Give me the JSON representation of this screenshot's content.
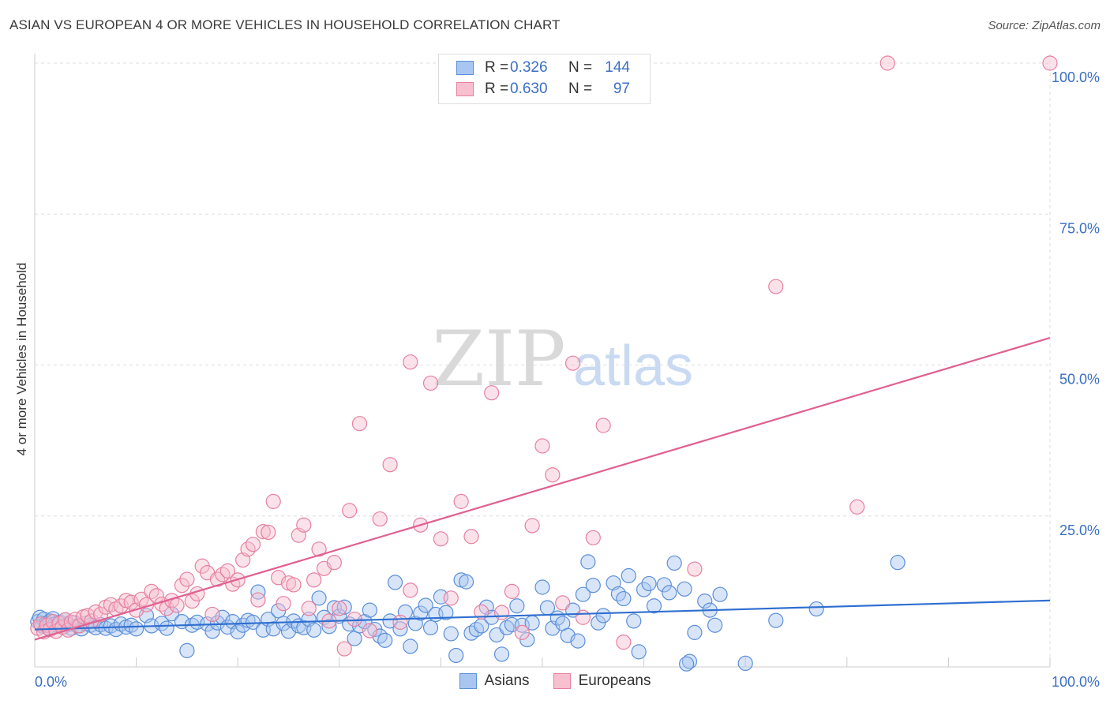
{
  "title": "ASIAN VS EUROPEAN 4 OR MORE VEHICLES IN HOUSEHOLD CORRELATION CHART",
  "source": "Source: ZipAtlas.com",
  "watermark": {
    "zip": "ZIP",
    "atlas": "atlas"
  },
  "legend": {
    "rows": [
      {
        "r_label": "R =",
        "r_value": "0.326",
        "n_label": "N =",
        "n_value": "144",
        "color": "#a9c6f0",
        "border": "#5b8fd9"
      },
      {
        "r_label": "R =",
        "r_value": "0.630",
        "n_label": "N =",
        "n_value": "97",
        "color": "#f7bfd0",
        "border": "#e6809f"
      }
    ]
  },
  "bottom_legend": {
    "asians": "Asians",
    "europeans": "Europeans"
  },
  "chart_data": {
    "type": "scatter",
    "title": "ASIAN VS EUROPEAN 4 OR MORE VEHICLES IN HOUSEHOLD CORRELATION CHART",
    "xlabel": "",
    "ylabel": "4 or more Vehicles in Household",
    "xlim": [
      0,
      100
    ],
    "ylim": [
      0,
      100
    ],
    "x_tick_labels": [
      "0.0%",
      "100.0%"
    ],
    "y_tick_labels": [
      "25.0%",
      "50.0%",
      "75.0%",
      "100.0%"
    ],
    "y_ticks": [
      25,
      50,
      75,
      100
    ],
    "grid": true,
    "legend_position": "top-center",
    "series": [
      {
        "name": "Asians",
        "color": "#a9c6f0",
        "edge": "#5b8fd9",
        "trend_color": "#2f6fd0",
        "trend": [
          [
            0,
            6.2
          ],
          [
            100,
            11.0
          ]
        ],
        "points": [
          [
            0.3,
            7.5
          ],
          [
            0.5,
            8.2
          ],
          [
            0.7,
            6.8
          ],
          [
            0.9,
            7.9
          ],
          [
            1.1,
            7.2
          ],
          [
            1.3,
            6.5
          ],
          [
            1.5,
            7.6
          ],
          [
            1.8,
            8.0
          ],
          [
            2.0,
            7.1
          ],
          [
            2.2,
            6.9
          ],
          [
            2.5,
            7.4
          ],
          [
            2.8,
            6.6
          ],
          [
            3.0,
            7.8
          ],
          [
            3.3,
            7.0
          ],
          [
            3.6,
            6.4
          ],
          [
            3.9,
            7.3
          ],
          [
            4.2,
            6.8
          ],
          [
            4.6,
            6.3
          ],
          [
            5.0,
            7.2
          ],
          [
            5.5,
            6.9
          ],
          [
            6.0,
            6.5
          ],
          [
            6.5,
            7.0
          ],
          [
            7.0,
            6.4
          ],
          [
            7.5,
            6.8
          ],
          [
            8.0,
            6.2
          ],
          [
            8.5,
            7.1
          ],
          [
            9.0,
            6.6
          ],
          [
            9.5,
            6.9
          ],
          [
            10.0,
            6.3
          ],
          [
            11.0,
            8.5
          ],
          [
            11.5,
            6.8
          ],
          [
            12.5,
            7.2
          ],
          [
            13.0,
            6.4
          ],
          [
            13.5,
            8.8
          ],
          [
            14.5,
            7.5
          ],
          [
            15.0,
            2.7
          ],
          [
            15.5,
            6.9
          ],
          [
            16.0,
            7.4
          ],
          [
            17.0,
            7.1
          ],
          [
            17.5,
            5.9
          ],
          [
            18.0,
            7.3
          ],
          [
            18.5,
            8.2
          ],
          [
            19.0,
            6.6
          ],
          [
            19.5,
            7.5
          ],
          [
            20.0,
            5.8
          ],
          [
            20.5,
            6.9
          ],
          [
            21.0,
            7.7
          ],
          [
            21.5,
            7.4
          ],
          [
            22.0,
            12.4
          ],
          [
            22.5,
            6.1
          ],
          [
            23.0,
            7.9
          ],
          [
            23.5,
            6.3
          ],
          [
            24.0,
            9.3
          ],
          [
            24.5,
            7.2
          ],
          [
            25.0,
            5.9
          ],
          [
            25.5,
            7.6
          ],
          [
            26.0,
            6.8
          ],
          [
            26.5,
            6.5
          ],
          [
            27.0,
            7.9
          ],
          [
            27.5,
            6.1
          ],
          [
            28.0,
            11.4
          ],
          [
            28.5,
            8.2
          ],
          [
            29.0,
            6.7
          ],
          [
            29.5,
            9.8
          ],
          [
            30.0,
            8.4
          ],
          [
            30.5,
            9.9
          ],
          [
            31.0,
            7.1
          ],
          [
            31.5,
            4.7
          ],
          [
            32.0,
            6.8
          ],
          [
            32.5,
            7.5
          ],
          [
            33.0,
            9.4
          ],
          [
            33.5,
            6.2
          ],
          [
            34.0,
            5.1
          ],
          [
            34.5,
            4.4
          ],
          [
            35.0,
            7.6
          ],
          [
            35.5,
            14.0
          ],
          [
            36.0,
            6.3
          ],
          [
            36.5,
            9.1
          ],
          [
            37.0,
            3.4
          ],
          [
            37.5,
            7.2
          ],
          [
            38.0,
            8.9
          ],
          [
            38.5,
            10.2
          ],
          [
            39.0,
            6.5
          ],
          [
            39.5,
            8.7
          ],
          [
            40.0,
            11.6
          ],
          [
            40.5,
            9.0
          ],
          [
            41.0,
            5.5
          ],
          [
            41.5,
            1.9
          ],
          [
            42.0,
            14.4
          ],
          [
            42.5,
            14.1
          ],
          [
            43.0,
            5.6
          ],
          [
            43.5,
            6.2
          ],
          [
            44.0,
            6.8
          ],
          [
            44.5,
            9.9
          ],
          [
            45.0,
            8.2
          ],
          [
            45.5,
            5.3
          ],
          [
            46.0,
            2.1
          ],
          [
            46.5,
            6.5
          ],
          [
            47.0,
            7.0
          ],
          [
            47.5,
            10.1
          ],
          [
            48.0,
            6.9
          ],
          [
            48.5,
            4.5
          ],
          [
            49.0,
            7.3
          ],
          [
            50.0,
            13.2
          ],
          [
            50.5,
            9.8
          ],
          [
            51.0,
            6.4
          ],
          [
            51.5,
            8.1
          ],
          [
            52.0,
            7.2
          ],
          [
            52.5,
            5.2
          ],
          [
            53.0,
            9.4
          ],
          [
            53.5,
            4.3
          ],
          [
            54.0,
            12.0
          ],
          [
            54.5,
            17.4
          ],
          [
            55.0,
            13.5
          ],
          [
            55.5,
            7.3
          ],
          [
            56.0,
            8.5
          ],
          [
            57.0,
            13.9
          ],
          [
            57.5,
            12.1
          ],
          [
            58.0,
            11.3
          ],
          [
            58.5,
            15.1
          ],
          [
            59.0,
            7.6
          ],
          [
            59.5,
            2.5
          ],
          [
            60.0,
            12.8
          ],
          [
            60.5,
            13.8
          ],
          [
            61.0,
            10.1
          ],
          [
            62.0,
            13.6
          ],
          [
            62.5,
            12.3
          ],
          [
            63.0,
            17.2
          ],
          [
            64.0,
            12.9
          ],
          [
            64.5,
            0.9
          ],
          [
            65.0,
            5.7
          ],
          [
            66.0,
            10.9
          ],
          [
            66.5,
            9.4
          ],
          [
            67.0,
            6.9
          ],
          [
            67.5,
            12.0
          ],
          [
            70.0,
            0.6
          ],
          [
            73.0,
            7.7
          ],
          [
            77.0,
            9.6
          ],
          [
            85.0,
            17.3
          ],
          [
            64.2,
            0.5
          ]
        ]
      },
      {
        "name": "Europeans",
        "color": "#f7bfd0",
        "edge": "#e6809f",
        "trend_color": "#e06090",
        "trend": [
          [
            0,
            4.5
          ],
          [
            100,
            54.5
          ]
        ],
        "points": [
          [
            0.3,
            6.4
          ],
          [
            0.6,
            7.1
          ],
          [
            0.9,
            5.8
          ],
          [
            1.2,
            6.9
          ],
          [
            1.5,
            6.2
          ],
          [
            1.8,
            7.5
          ],
          [
            2.1,
            5.9
          ],
          [
            2.4,
            7.2
          ],
          [
            2.7,
            6.6
          ],
          [
            3.0,
            7.8
          ],
          [
            3.3,
            6.1
          ],
          [
            3.6,
            7.4
          ],
          [
            4.0,
            7.9
          ],
          [
            4.4,
            6.8
          ],
          [
            4.8,
            8.3
          ],
          [
            5.2,
            8.5
          ],
          [
            5.6,
            7.6
          ],
          [
            6.0,
            9.1
          ],
          [
            6.5,
            8.7
          ],
          [
            7.0,
            9.9
          ],
          [
            7.5,
            10.3
          ],
          [
            8.0,
            9.6
          ],
          [
            8.5,
            10.1
          ],
          [
            9.0,
            11.0
          ],
          [
            9.5,
            10.7
          ],
          [
            10.0,
            9.4
          ],
          [
            10.5,
            11.2
          ],
          [
            11.0,
            10.3
          ],
          [
            11.5,
            12.5
          ],
          [
            12.0,
            11.8
          ],
          [
            12.5,
            10.4
          ],
          [
            13.0,
            9.7
          ],
          [
            13.5,
            11.0
          ],
          [
            14.0,
            10.2
          ],
          [
            14.5,
            13.5
          ],
          [
            15.0,
            14.5
          ],
          [
            15.5,
            10.9
          ],
          [
            16.0,
            12.1
          ],
          [
            16.5,
            16.7
          ],
          [
            17.0,
            15.6
          ],
          [
            17.5,
            8.7
          ],
          [
            18.0,
            14.5
          ],
          [
            18.5,
            15.3
          ],
          [
            19.0,
            15.9
          ],
          [
            19.5,
            13.7
          ],
          [
            20.0,
            14.4
          ],
          [
            20.5,
            17.7
          ],
          [
            21.0,
            19.5
          ],
          [
            21.5,
            20.3
          ],
          [
            22.0,
            11.1
          ],
          [
            22.5,
            22.4
          ],
          [
            23.0,
            22.3
          ],
          [
            23.5,
            27.4
          ],
          [
            24.0,
            14.8
          ],
          [
            24.5,
            10.5
          ],
          [
            25.0,
            13.9
          ],
          [
            25.5,
            13.6
          ],
          [
            26.0,
            21.8
          ],
          [
            26.5,
            23.5
          ],
          [
            27.0,
            9.7
          ],
          [
            27.5,
            14.4
          ],
          [
            28.0,
            19.5
          ],
          [
            28.5,
            16.3
          ],
          [
            29.0,
            7.6
          ],
          [
            29.5,
            17.3
          ],
          [
            30.0,
            9.7
          ],
          [
            30.5,
            3.0
          ],
          [
            31.0,
            25.9
          ],
          [
            31.5,
            7.9
          ],
          [
            32.0,
            40.3
          ],
          [
            33.0,
            6.0
          ],
          [
            34.0,
            24.5
          ],
          [
            35.0,
            33.5
          ],
          [
            36.0,
            7.4
          ],
          [
            37.0,
            12.7
          ],
          [
            38.0,
            23.5
          ],
          [
            39.0,
            47.0
          ],
          [
            40.0,
            21.2
          ],
          [
            41.0,
            11.4
          ],
          [
            42.0,
            27.4
          ],
          [
            43.0,
            21.6
          ],
          [
            44.0,
            9.1
          ],
          [
            45.0,
            45.4
          ],
          [
            46.0,
            9.0
          ],
          [
            47.0,
            12.5
          ],
          [
            48.0,
            5.7
          ],
          [
            49.0,
            23.4
          ],
          [
            50.0,
            36.6
          ],
          [
            51.0,
            31.8
          ],
          [
            52.0,
            10.6
          ],
          [
            53.0,
            50.3
          ],
          [
            54.0,
            8.2
          ],
          [
            55.0,
            21.4
          ],
          [
            56.0,
            40.0
          ],
          [
            58.0,
            4.1
          ],
          [
            65.0,
            16.2
          ],
          [
            73.0,
            63.0
          ],
          [
            81.0,
            26.5
          ],
          [
            84.0,
            100.0
          ],
          [
            100.0,
            100.0
          ],
          [
            37.0,
            50.5
          ]
        ]
      }
    ]
  }
}
